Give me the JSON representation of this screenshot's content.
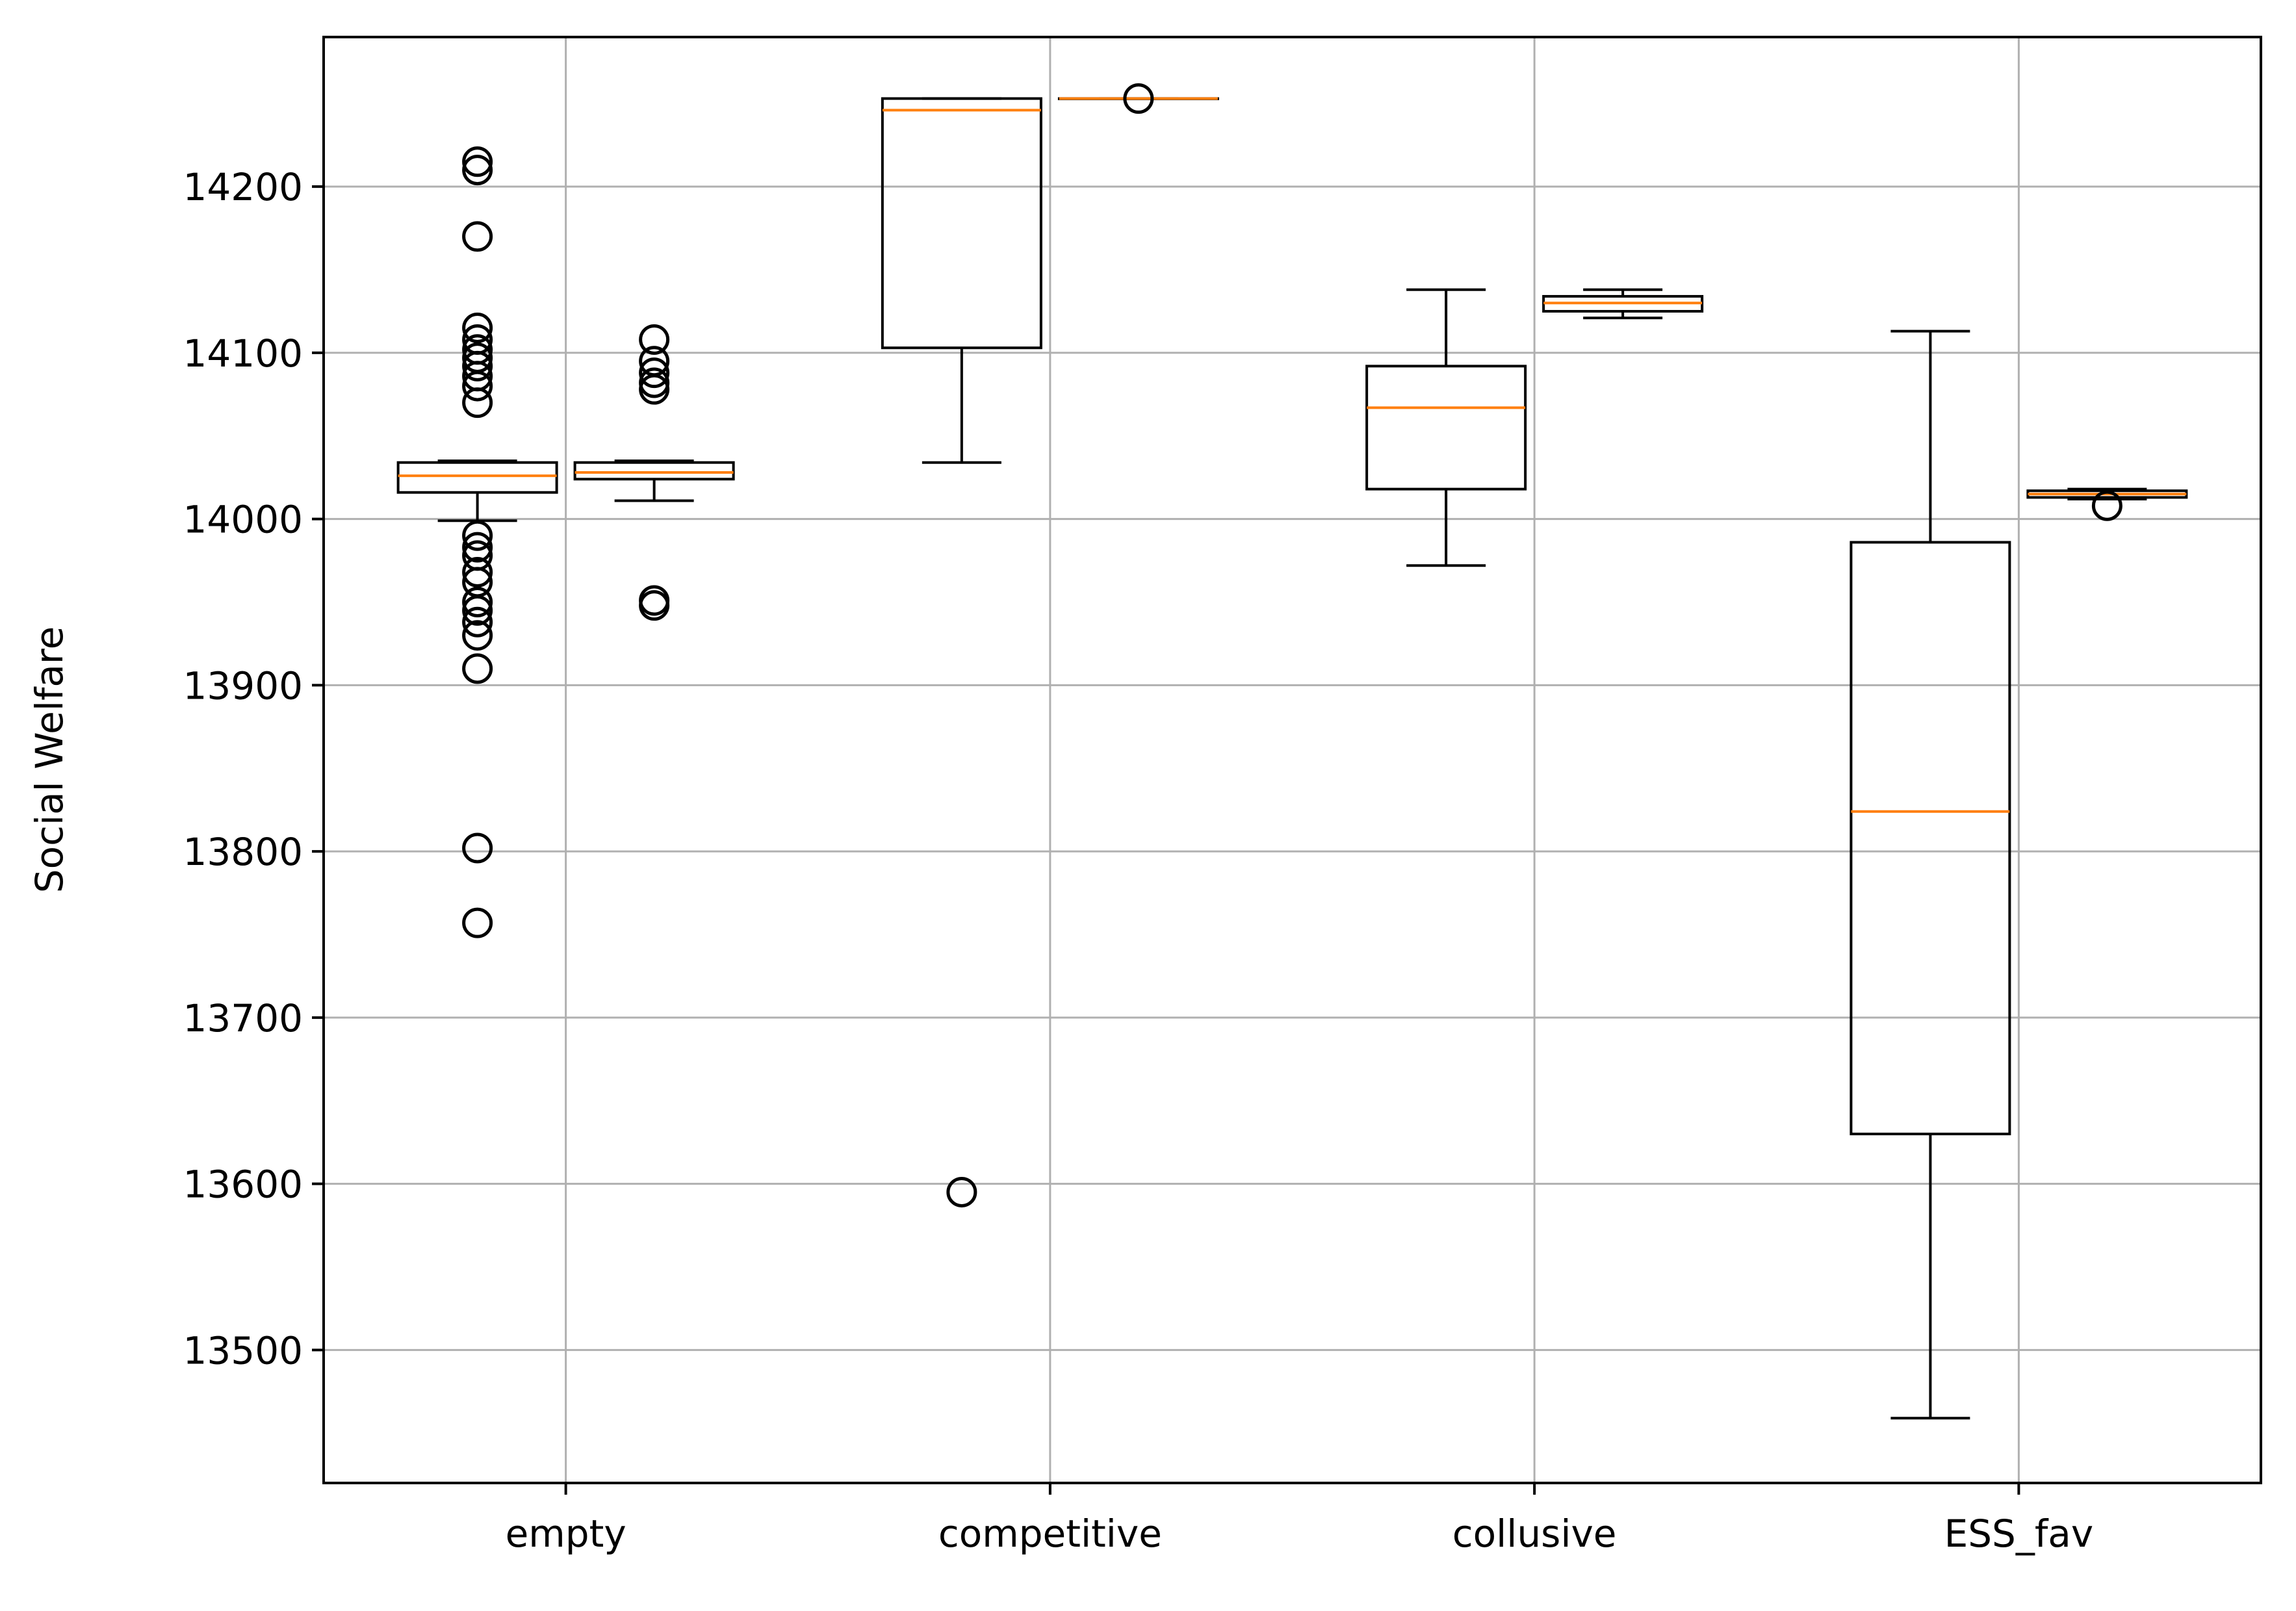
{
  "chart_data": {
    "type": "box",
    "categories": [
      "empty",
      "competitive",
      "collusive",
      "ESS_fav"
    ],
    "ylabel": "Social Welfare",
    "xlabel": "",
    "title": "",
    "ylim": [
      13420,
      14290
    ],
    "yticks": [
      13500,
      13600,
      13700,
      13800,
      13900,
      14000,
      14100,
      14200
    ],
    "grid": true,
    "colors": {
      "box": "#000000",
      "median": "#ff7f0e",
      "grid": "#b0b0b0"
    },
    "boxes": [
      {
        "category": "empty",
        "slot": "left",
        "whislo": 13999,
        "q1": 14016,
        "median": 14026,
        "q3": 14034,
        "whishi": 14035,
        "fliers": [
          14215,
          14210,
          14170,
          14115,
          14108,
          14102,
          14097,
          14092,
          14086,
          14080,
          14070,
          13990,
          13983,
          13978,
          13968,
          13962,
          13950,
          13945,
          13938,
          13930,
          13910,
          13802,
          13757
        ]
      },
      {
        "category": "empty",
        "slot": "right",
        "whislo": 14011,
        "q1": 14024,
        "median": 14028,
        "q3": 14034,
        "whishi": 14035,
        "fliers": [
          14108,
          14095,
          14088,
          14082,
          14078,
          13951,
          13948
        ]
      },
      {
        "category": "competitive",
        "slot": "left",
        "whislo": 14034,
        "q1": 14103,
        "median": 14246,
        "q3": 14253,
        "whishi": 14253,
        "fliers": [
          13595
        ]
      },
      {
        "category": "competitive",
        "slot": "right",
        "whislo": 14253,
        "q1": 14253,
        "median": 14253,
        "q3": 14253,
        "whishi": 14253,
        "fliers": [
          14253
        ]
      },
      {
        "category": "collusive",
        "slot": "left",
        "whislo": 13972,
        "q1": 14018,
        "median": 14067,
        "q3": 14092,
        "whishi": 14138,
        "fliers": []
      },
      {
        "category": "collusive",
        "slot": "right",
        "whislo": 14121,
        "q1": 14125,
        "median": 14130,
        "q3": 14134,
        "whishi": 14138,
        "fliers": []
      },
      {
        "category": "ESS_fav",
        "slot": "left",
        "whislo": 13459,
        "q1": 13630,
        "median": 13824,
        "q3": 13986,
        "whishi": 14113,
        "fliers": []
      },
      {
        "category": "ESS_fav",
        "slot": "right",
        "whislo": 14012,
        "q1": 14013,
        "median": 14015,
        "q3": 14017,
        "whishi": 14018,
        "fliers": [
          14008
        ]
      }
    ]
  }
}
